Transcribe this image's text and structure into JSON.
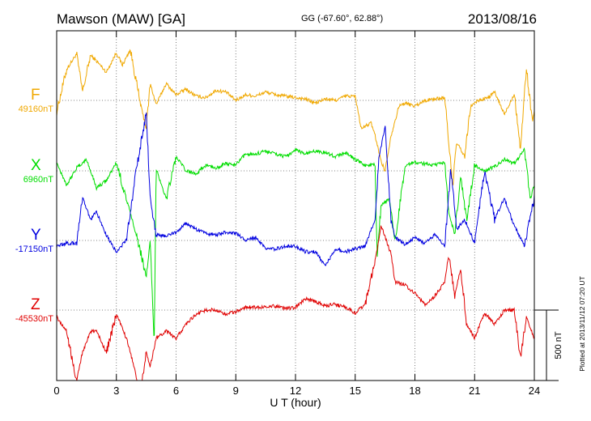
{
  "chart_data": {
    "type": "line",
    "title": "Mawson (MAW)  [GA]",
    "subtitle": "GG (-67.60°,  62.88°)",
    "date": "2013/08/16",
    "xlabel": "U T (hour)",
    "xlim": [
      0,
      24
    ],
    "x_ticks": [
      "0",
      "3",
      "6",
      "9",
      "12",
      "15",
      "18",
      "21",
      "24"
    ],
    "x_tick_values": [
      0,
      3,
      6,
      9,
      12,
      15,
      18,
      21,
      24
    ],
    "grid": true,
    "scale_bar_nT": 500,
    "scale_label": "500 nT",
    "footnote": "Plotted at 2013/11/12 07:20 UT",
    "series": [
      {
        "name": "F",
        "baseline_label": "49160nT",
        "baseline_nT": 49160,
        "color": "#f0a800",
        "x": [
          0,
          0.5,
          1.0,
          1.3,
          1.7,
          2.0,
          2.5,
          3.0,
          3.3,
          3.7,
          4.2,
          4.5,
          4.7,
          5.0,
          5.5,
          6.0,
          6.5,
          7.0,
          7.5,
          8.0,
          8.5,
          9.0,
          9.5,
          10.0,
          10.5,
          11.0,
          11.5,
          12.0,
          12.5,
          13.0,
          13.5,
          14.0,
          14.5,
          15.0,
          15.3,
          15.8,
          16.0,
          16.3,
          16.5,
          16.8,
          17.2,
          17.5,
          18.0,
          18.5,
          19.0,
          19.5,
          19.7,
          19.9,
          20.1,
          20.5,
          20.8,
          21.2,
          21.7,
          22.0,
          22.5,
          23.0,
          23.3,
          23.6,
          23.9,
          24.0
        ],
        "y": [
          -80,
          220,
          330,
          60,
          320,
          280,
          200,
          340,
          250,
          360,
          -20,
          -200,
          120,
          -30,
          120,
          40,
          80,
          30,
          20,
          70,
          60,
          0,
          40,
          30,
          60,
          40,
          30,
          20,
          10,
          -20,
          10,
          0,
          30,
          30,
          -200,
          -160,
          -250,
          -430,
          -500,
          -250,
          -40,
          -20,
          -40,
          0,
          10,
          20,
          -300,
          -600,
          -300,
          -400,
          -40,
          0,
          20,
          60,
          -100,
          50,
          -350,
          230,
          -150,
          -80
        ]
      },
      {
        "name": "X",
        "baseline_label": "6960nT",
        "baseline_nT": 6960,
        "color": "#00dd00",
        "x": [
          0,
          0.5,
          1.0,
          1.5,
          2.0,
          2.5,
          3.0,
          3.5,
          4.0,
          4.5,
          4.7,
          4.9,
          5.0,
          5.5,
          6.0,
          6.5,
          7.0,
          7.5,
          8.0,
          8.5,
          9.0,
          9.5,
          10.0,
          10.5,
          11.0,
          11.5,
          12.0,
          12.5,
          13.0,
          13.5,
          14.0,
          14.5,
          15.0,
          15.5,
          16.0,
          16.1,
          16.3,
          16.7,
          17.0,
          17.5,
          18.0,
          18.5,
          19.0,
          19.5,
          19.7,
          20.0,
          20.3,
          20.6,
          21.0,
          21.5,
          22.0,
          22.5,
          23.0,
          23.5,
          23.8,
          24.0
        ],
        "y": [
          60,
          -100,
          20,
          80,
          -120,
          -70,
          60,
          -200,
          -450,
          -750,
          -500,
          -1250,
          20,
          -200,
          100,
          0,
          -20,
          40,
          20,
          50,
          40,
          120,
          120,
          140,
          120,
          100,
          150,
          120,
          140,
          130,
          100,
          130,
          80,
          40,
          40,
          -600,
          -250,
          -200,
          -500,
          40,
          60,
          50,
          40,
          60,
          -300,
          -450,
          -50,
          -350,
          40,
          0,
          30,
          80,
          50,
          150,
          -200,
          -100
        ]
      },
      {
        "name": "Y",
        "baseline_label": "-17150nT",
        "baseline_nT": -17150,
        "color": "#0000e0",
        "x": [
          0,
          0.5,
          1.0,
          1.3,
          1.7,
          2.0,
          2.5,
          3.0,
          3.5,
          4.0,
          4.5,
          4.7,
          5.0,
          5.5,
          6.0,
          6.5,
          7.0,
          7.5,
          8.0,
          8.5,
          9.0,
          9.5,
          10.0,
          10.5,
          11.0,
          11.5,
          12.0,
          12.5,
          13.0,
          13.5,
          14.0,
          14.5,
          15.0,
          15.5,
          16.0,
          16.2,
          16.5,
          16.8,
          17.0,
          17.5,
          18.0,
          18.5,
          19.0,
          19.5,
          19.8,
          20.1,
          20.5,
          21.0,
          21.5,
          22.0,
          22.5,
          23.0,
          23.5,
          24.0
        ],
        "y": [
          -40,
          -20,
          -20,
          300,
          150,
          200,
          40,
          -80,
          0,
          500,
          900,
          300,
          40,
          30,
          60,
          120,
          80,
          50,
          40,
          60,
          50,
          0,
          20,
          -60,
          -60,
          -40,
          -40,
          -80,
          -80,
          -180,
          -60,
          -80,
          -60,
          -40,
          150,
          600,
          800,
          150,
          20,
          -30,
          20,
          -20,
          40,
          -40,
          500,
          80,
          150,
          -20,
          500,
          150,
          300,
          100,
          -40,
          300
        ]
      },
      {
        "name": "Z",
        "baseline_label": "-45530nT",
        "baseline_nT": -45530,
        "color": "#e00000",
        "x": [
          0,
          0.5,
          1.0,
          1.3,
          1.7,
          2.0,
          2.5,
          3.0,
          3.5,
          3.8,
          4.2,
          4.5,
          4.7,
          5.0,
          5.5,
          6.0,
          6.5,
          7.0,
          7.5,
          8.0,
          8.5,
          9.0,
          9.5,
          10.0,
          10.5,
          11.0,
          11.5,
          12.0,
          12.5,
          13.0,
          13.5,
          14.0,
          14.5,
          15.0,
          15.5,
          16.0,
          16.3,
          16.8,
          17.0,
          17.5,
          18.0,
          18.5,
          19.0,
          19.5,
          19.7,
          20.0,
          20.3,
          20.6,
          21.0,
          21.5,
          22.0,
          22.5,
          23.0,
          23.3,
          23.6,
          24.0
        ],
        "y": [
          -50,
          -150,
          -500,
          -300,
          -150,
          -150,
          -300,
          -30,
          -200,
          -350,
          -600,
          -300,
          -400,
          -200,
          -150,
          -200,
          -100,
          -30,
          0,
          0,
          -30,
          -10,
          20,
          20,
          20,
          30,
          10,
          20,
          80,
          60,
          30,
          40,
          20,
          -20,
          40,
          350,
          600,
          400,
          200,
          180,
          120,
          40,
          100,
          200,
          400,
          100,
          300,
          -100,
          -200,
          -20,
          -100,
          0,
          0,
          -350,
          -50,
          -200
        ]
      }
    ]
  }
}
